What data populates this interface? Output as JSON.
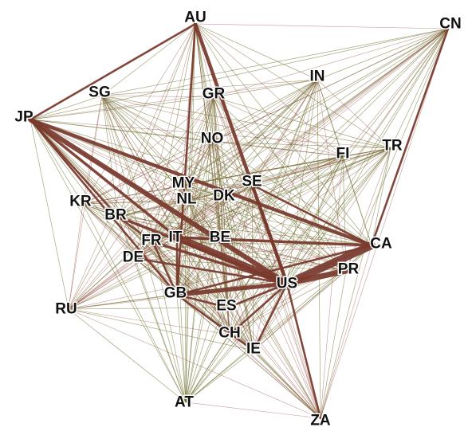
{
  "diagram": {
    "nodes": [
      {
        "id": "AU",
        "label": "AU"
      },
      {
        "id": "CN",
        "label": "CN"
      },
      {
        "id": "IN",
        "label": "IN"
      },
      {
        "id": "SG",
        "label": "SG"
      },
      {
        "id": "GR",
        "label": "GR"
      },
      {
        "id": "JP",
        "label": "JP"
      },
      {
        "id": "NO",
        "label": "NO"
      },
      {
        "id": "FI",
        "label": "FI"
      },
      {
        "id": "TR",
        "label": "TR"
      },
      {
        "id": "MY",
        "label": "MY"
      },
      {
        "id": "SE",
        "label": "SE"
      },
      {
        "id": "NL",
        "label": "NL"
      },
      {
        "id": "DK",
        "label": "DK"
      },
      {
        "id": "KR",
        "label": "KR"
      },
      {
        "id": "BR",
        "label": "BR"
      },
      {
        "id": "FR",
        "label": "FR"
      },
      {
        "id": "IT",
        "label": "IT"
      },
      {
        "id": "BE",
        "label": "BE"
      },
      {
        "id": "CA",
        "label": "CA"
      },
      {
        "id": "DE",
        "label": "DE"
      },
      {
        "id": "PR",
        "label": "PR"
      },
      {
        "id": "US",
        "label": "US"
      },
      {
        "id": "RU",
        "label": "RU"
      },
      {
        "id": "GB",
        "label": "GB"
      },
      {
        "id": "ES",
        "label": "ES"
      },
      {
        "id": "CH",
        "label": "CH"
      },
      {
        "id": "IE",
        "label": "IE"
      },
      {
        "id": "AT",
        "label": "AT"
      },
      {
        "id": "ZA",
        "label": "ZA"
      }
    ],
    "strong_edges": [
      {
        "source": "US",
        "target": "CA",
        "weight": 10
      },
      {
        "source": "US",
        "target": "IT",
        "weight": 9
      },
      {
        "source": "US",
        "target": "JP",
        "weight": 6
      },
      {
        "source": "US",
        "target": "AU",
        "weight": 4
      },
      {
        "source": "US",
        "target": "GB",
        "weight": 5
      },
      {
        "source": "US",
        "target": "PR",
        "weight": 7
      },
      {
        "source": "US",
        "target": "SE",
        "weight": 3
      },
      {
        "source": "US",
        "target": "FR",
        "weight": 3
      },
      {
        "source": "US",
        "target": "BR",
        "weight": 3
      },
      {
        "source": "US",
        "target": "DE",
        "weight": 2
      },
      {
        "source": "US",
        "target": "ES",
        "weight": 2
      },
      {
        "source": "US",
        "target": "IE",
        "weight": 2
      },
      {
        "source": "US",
        "target": "ZA",
        "weight": 2
      },
      {
        "source": "JP",
        "target": "CA",
        "weight": 4
      },
      {
        "source": "JP",
        "target": "IT",
        "weight": 3
      },
      {
        "source": "JP",
        "target": "BR",
        "weight": 2
      },
      {
        "source": "JP",
        "target": "GB",
        "weight": 2
      },
      {
        "source": "IT",
        "target": "CA",
        "weight": 3
      },
      {
        "source": "IT",
        "target": "GB",
        "weight": 2
      },
      {
        "source": "GB",
        "target": "CA",
        "weight": 2
      },
      {
        "source": "SE",
        "target": "CA",
        "weight": 2
      },
      {
        "source": "BR",
        "target": "FR",
        "weight": 2
      },
      {
        "source": "AU",
        "target": "JP",
        "weight": 2
      },
      {
        "source": "AU",
        "target": "GB",
        "weight": 2
      },
      {
        "source": "CN",
        "target": "CA",
        "weight": 2
      },
      {
        "source": "FR",
        "target": "GB",
        "weight": 2
      },
      {
        "source": "BE",
        "target": "IT",
        "weight": 2
      },
      {
        "source": "CH",
        "target": "US",
        "weight": 2
      },
      {
        "source": "IE",
        "target": "GB",
        "weight": 2
      },
      {
        "source": "ES",
        "target": "GB",
        "weight": 2
      }
    ],
    "colors": {
      "edge_green": "#6b6b2a",
      "edge_red": "#8a3a2e",
      "edge_strong": "#7a3a2e",
      "label": "#111111"
    }
  }
}
